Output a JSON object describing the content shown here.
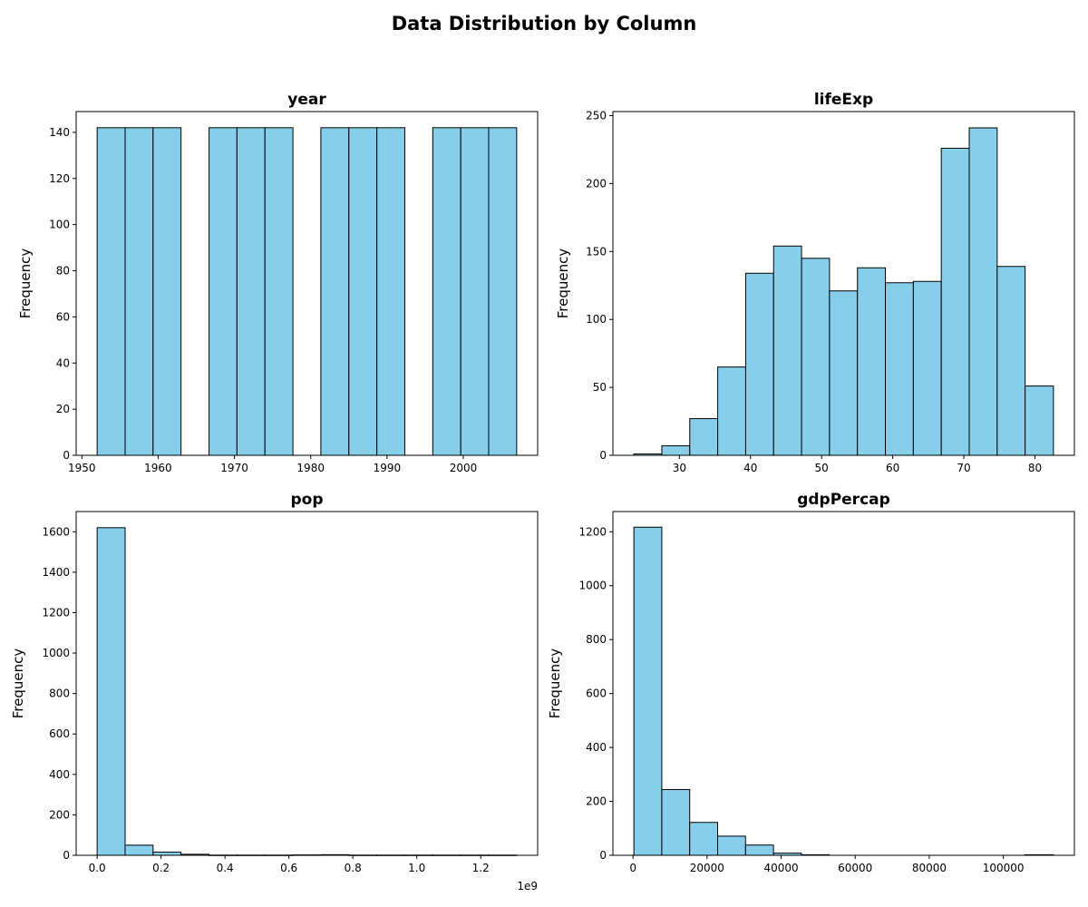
{
  "figure": {
    "title": "Data Distribution by Column"
  },
  "chart_data": [
    {
      "type": "bar",
      "title": "year",
      "xlabel": "",
      "ylabel": "Frequency",
      "bar_color": "#87ceeb",
      "edge_color": "#000000",
      "bin_edges": [
        1952,
        1955.67,
        1959.33,
        1963,
        1966.67,
        1970.33,
        1974,
        1977.67,
        1981.33,
        1985,
        1988.67,
        1992.33,
        1996,
        1999.67,
        2003.33,
        2007
      ],
      "values": [
        142,
        142,
        142,
        0,
        142,
        142,
        142,
        0,
        142,
        142,
        142,
        0,
        142,
        142,
        142
      ],
      "xlim": [
        1949.25,
        2009.75
      ],
      "ylim": [
        0,
        149
      ],
      "xticks": [
        1950,
        1960,
        1970,
        1980,
        1990,
        2000
      ],
      "xtick_labels": [
        "1950",
        "1960",
        "1970",
        "1980",
        "1990",
        "2000"
      ],
      "yticks": [
        0,
        20,
        40,
        60,
        80,
        100,
        120,
        140
      ],
      "ytick_labels": [
        "0",
        "20",
        "40",
        "60",
        "80",
        "100",
        "120",
        "140"
      ],
      "x_offset_label": "",
      "grid": false
    },
    {
      "type": "bar",
      "title": "lifeExp",
      "xlabel": "",
      "ylabel": "Frequency",
      "bar_color": "#87ceeb",
      "edge_color": "#000000",
      "bin_edges": [
        23.6,
        27.53,
        31.46,
        35.39,
        39.32,
        43.25,
        47.18,
        51.11,
        55.04,
        58.97,
        62.9,
        66.83,
        70.76,
        74.69,
        78.62,
        82.6
      ],
      "values": [
        1,
        7,
        27,
        65,
        134,
        154,
        145,
        121,
        138,
        127,
        128,
        226,
        241,
        139,
        51
      ],
      "xlim": [
        20.65,
        85.55
      ],
      "ylim": [
        0,
        253
      ],
      "xticks": [
        30,
        40,
        50,
        60,
        70,
        80
      ],
      "xtick_labels": [
        "30",
        "40",
        "50",
        "60",
        "70",
        "80"
      ],
      "yticks": [
        0,
        50,
        100,
        150,
        200,
        250
      ],
      "ytick_labels": [
        "0",
        "50",
        "100",
        "150",
        "200",
        "250"
      ],
      "x_offset_label": "",
      "grid": false
    },
    {
      "type": "bar",
      "title": "pop",
      "xlabel": "",
      "ylabel": "Frequency",
      "bar_color": "#87ceeb",
      "edge_color": "#000000",
      "bin_edges": [
        0,
        0.0875,
        0.175,
        0.2625,
        0.35,
        0.4375,
        0.525,
        0.6125,
        0.7,
        0.7875,
        0.875,
        0.9625,
        1.05,
        1.1375,
        1.225,
        1.3125
      ],
      "values": [
        1620,
        50,
        16,
        5,
        1,
        1,
        1,
        2,
        3,
        1,
        1,
        1,
        1,
        1,
        1
      ],
      "xlim": [
        -0.0656,
        1.3781
      ],
      "ylim": [
        0,
        1700
      ],
      "xticks": [
        0,
        0.2,
        0.4,
        0.6,
        0.8,
        1.0,
        1.2
      ],
      "xtick_labels": [
        "0.0",
        "0.2",
        "0.4",
        "0.6",
        "0.8",
        "1.0",
        "1.2"
      ],
      "yticks": [
        0,
        200,
        400,
        600,
        800,
        1000,
        1200,
        1400,
        1600
      ],
      "ytick_labels": [
        "0",
        "200",
        "400",
        "600",
        "800",
        "1000",
        "1200",
        "1400",
        "1600"
      ],
      "x_offset_label": "1e9",
      "grid": false
    },
    {
      "type": "bar",
      "title": "gdpPercap",
      "xlabel": "",
      "ylabel": "Frequency",
      "bar_color": "#87ceeb",
      "edge_color": "#000000",
      "bin_edges": [
        241,
        7779,
        15317,
        22855,
        30393,
        37931,
        45469,
        53007,
        60545,
        68083,
        75621,
        83159,
        90697,
        98235,
        105773,
        113523
      ],
      "values": [
        1217,
        244,
        122,
        71,
        38,
        8,
        2,
        0,
        0,
        0,
        0,
        0,
        0,
        0,
        2
      ],
      "xlim": [
        -5423,
        119187
      ],
      "ylim": [
        0,
        1275
      ],
      "xticks": [
        0,
        20000,
        40000,
        60000,
        80000,
        100000
      ],
      "xtick_labels": [
        "0",
        "20000",
        "40000",
        "60000",
        "80000",
        "100000"
      ],
      "yticks": [
        0,
        200,
        400,
        600,
        800,
        1000,
        1200
      ],
      "ytick_labels": [
        "0",
        "200",
        "400",
        "600",
        "800",
        "1000",
        "1200"
      ],
      "x_offset_label": "",
      "grid": false
    }
  ]
}
